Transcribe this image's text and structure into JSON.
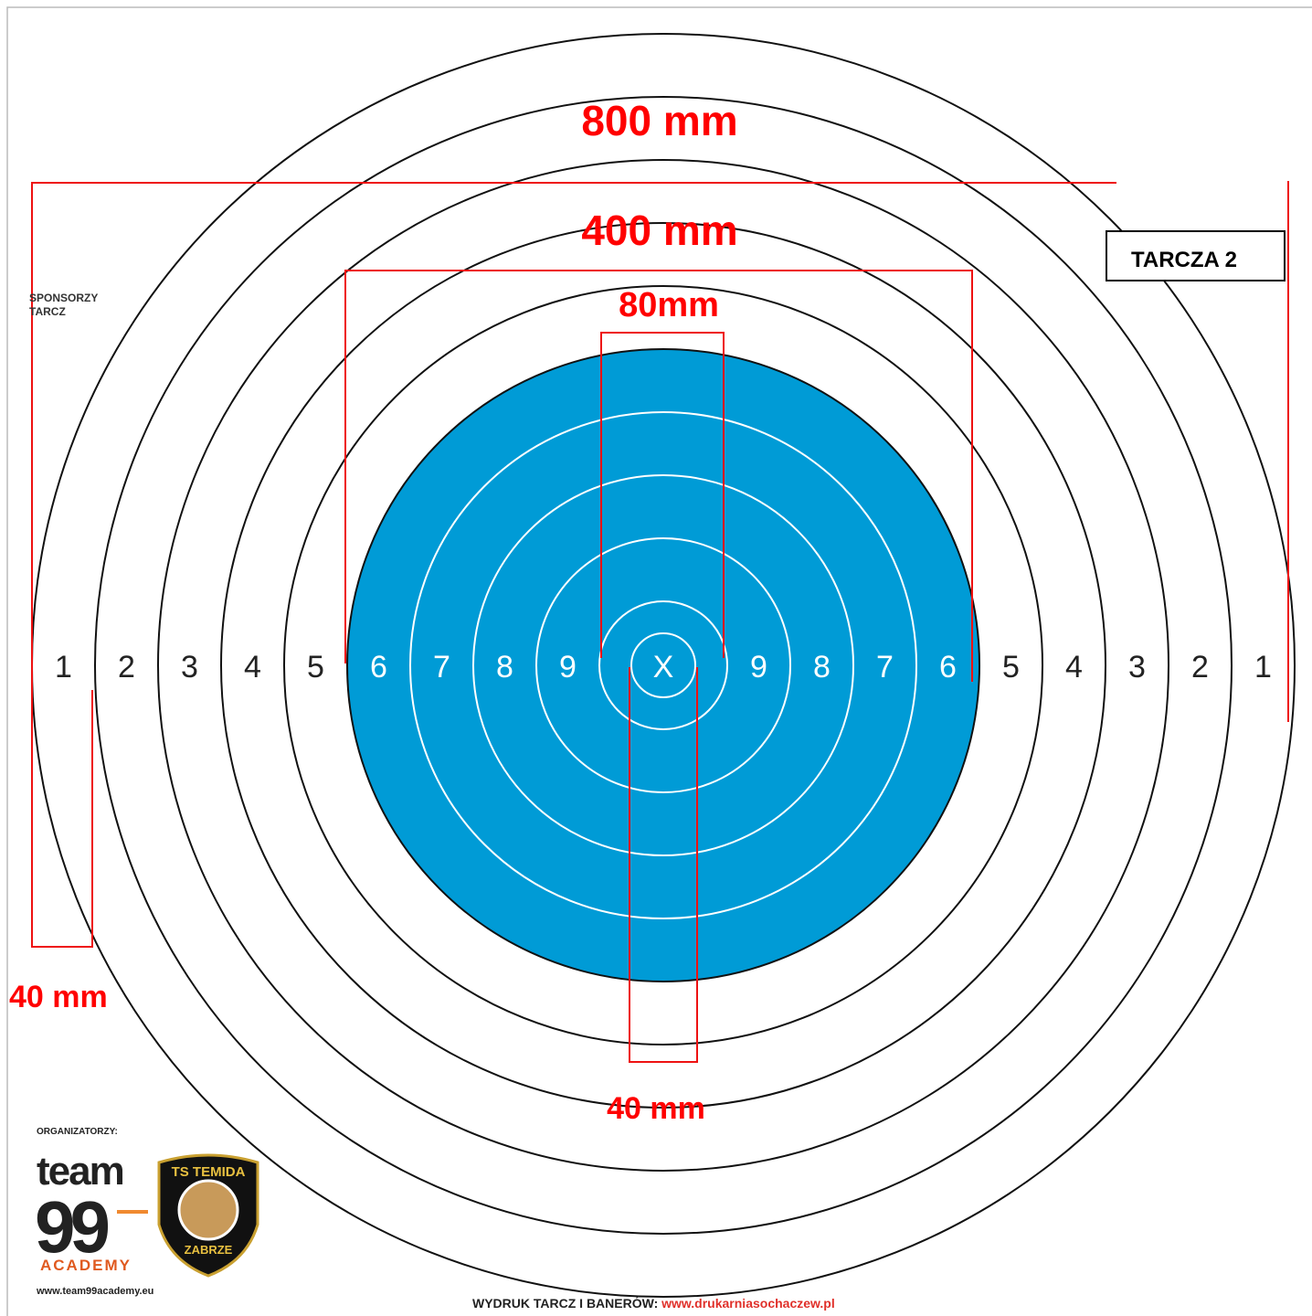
{
  "target": {
    "dimensions": {
      "outer": "800 mm",
      "middle": "400 mm",
      "inner": "80mm",
      "ring_width": "40 mm",
      "center_width": "40 mm"
    },
    "label": "TARCZA 2",
    "sponsors": [
      "SPONSORZY",
      "TARCZ"
    ],
    "ring_labels_left": [
      "1",
      "2",
      "3",
      "4",
      "5",
      "6",
      "7",
      "8",
      "9"
    ],
    "center_label": "X",
    "ring_labels_right": [
      "9",
      "8",
      "7",
      "6",
      "5",
      "4",
      "3",
      "2",
      "1"
    ],
    "organizers": "ORGANIZATORZY:",
    "logo_team": {
      "line1": "team",
      "line2": "99",
      "line3": "ACADEMY",
      "url": "www.team99academy.eu"
    },
    "logo_club": {
      "top": "TS TEMIDA",
      "bottom": "ZABRZE"
    },
    "footer": {
      "prefix": "WYDRUK TARCZ I BANERÓW:",
      "url": "www.drukarniasochaczew.pl"
    }
  }
}
